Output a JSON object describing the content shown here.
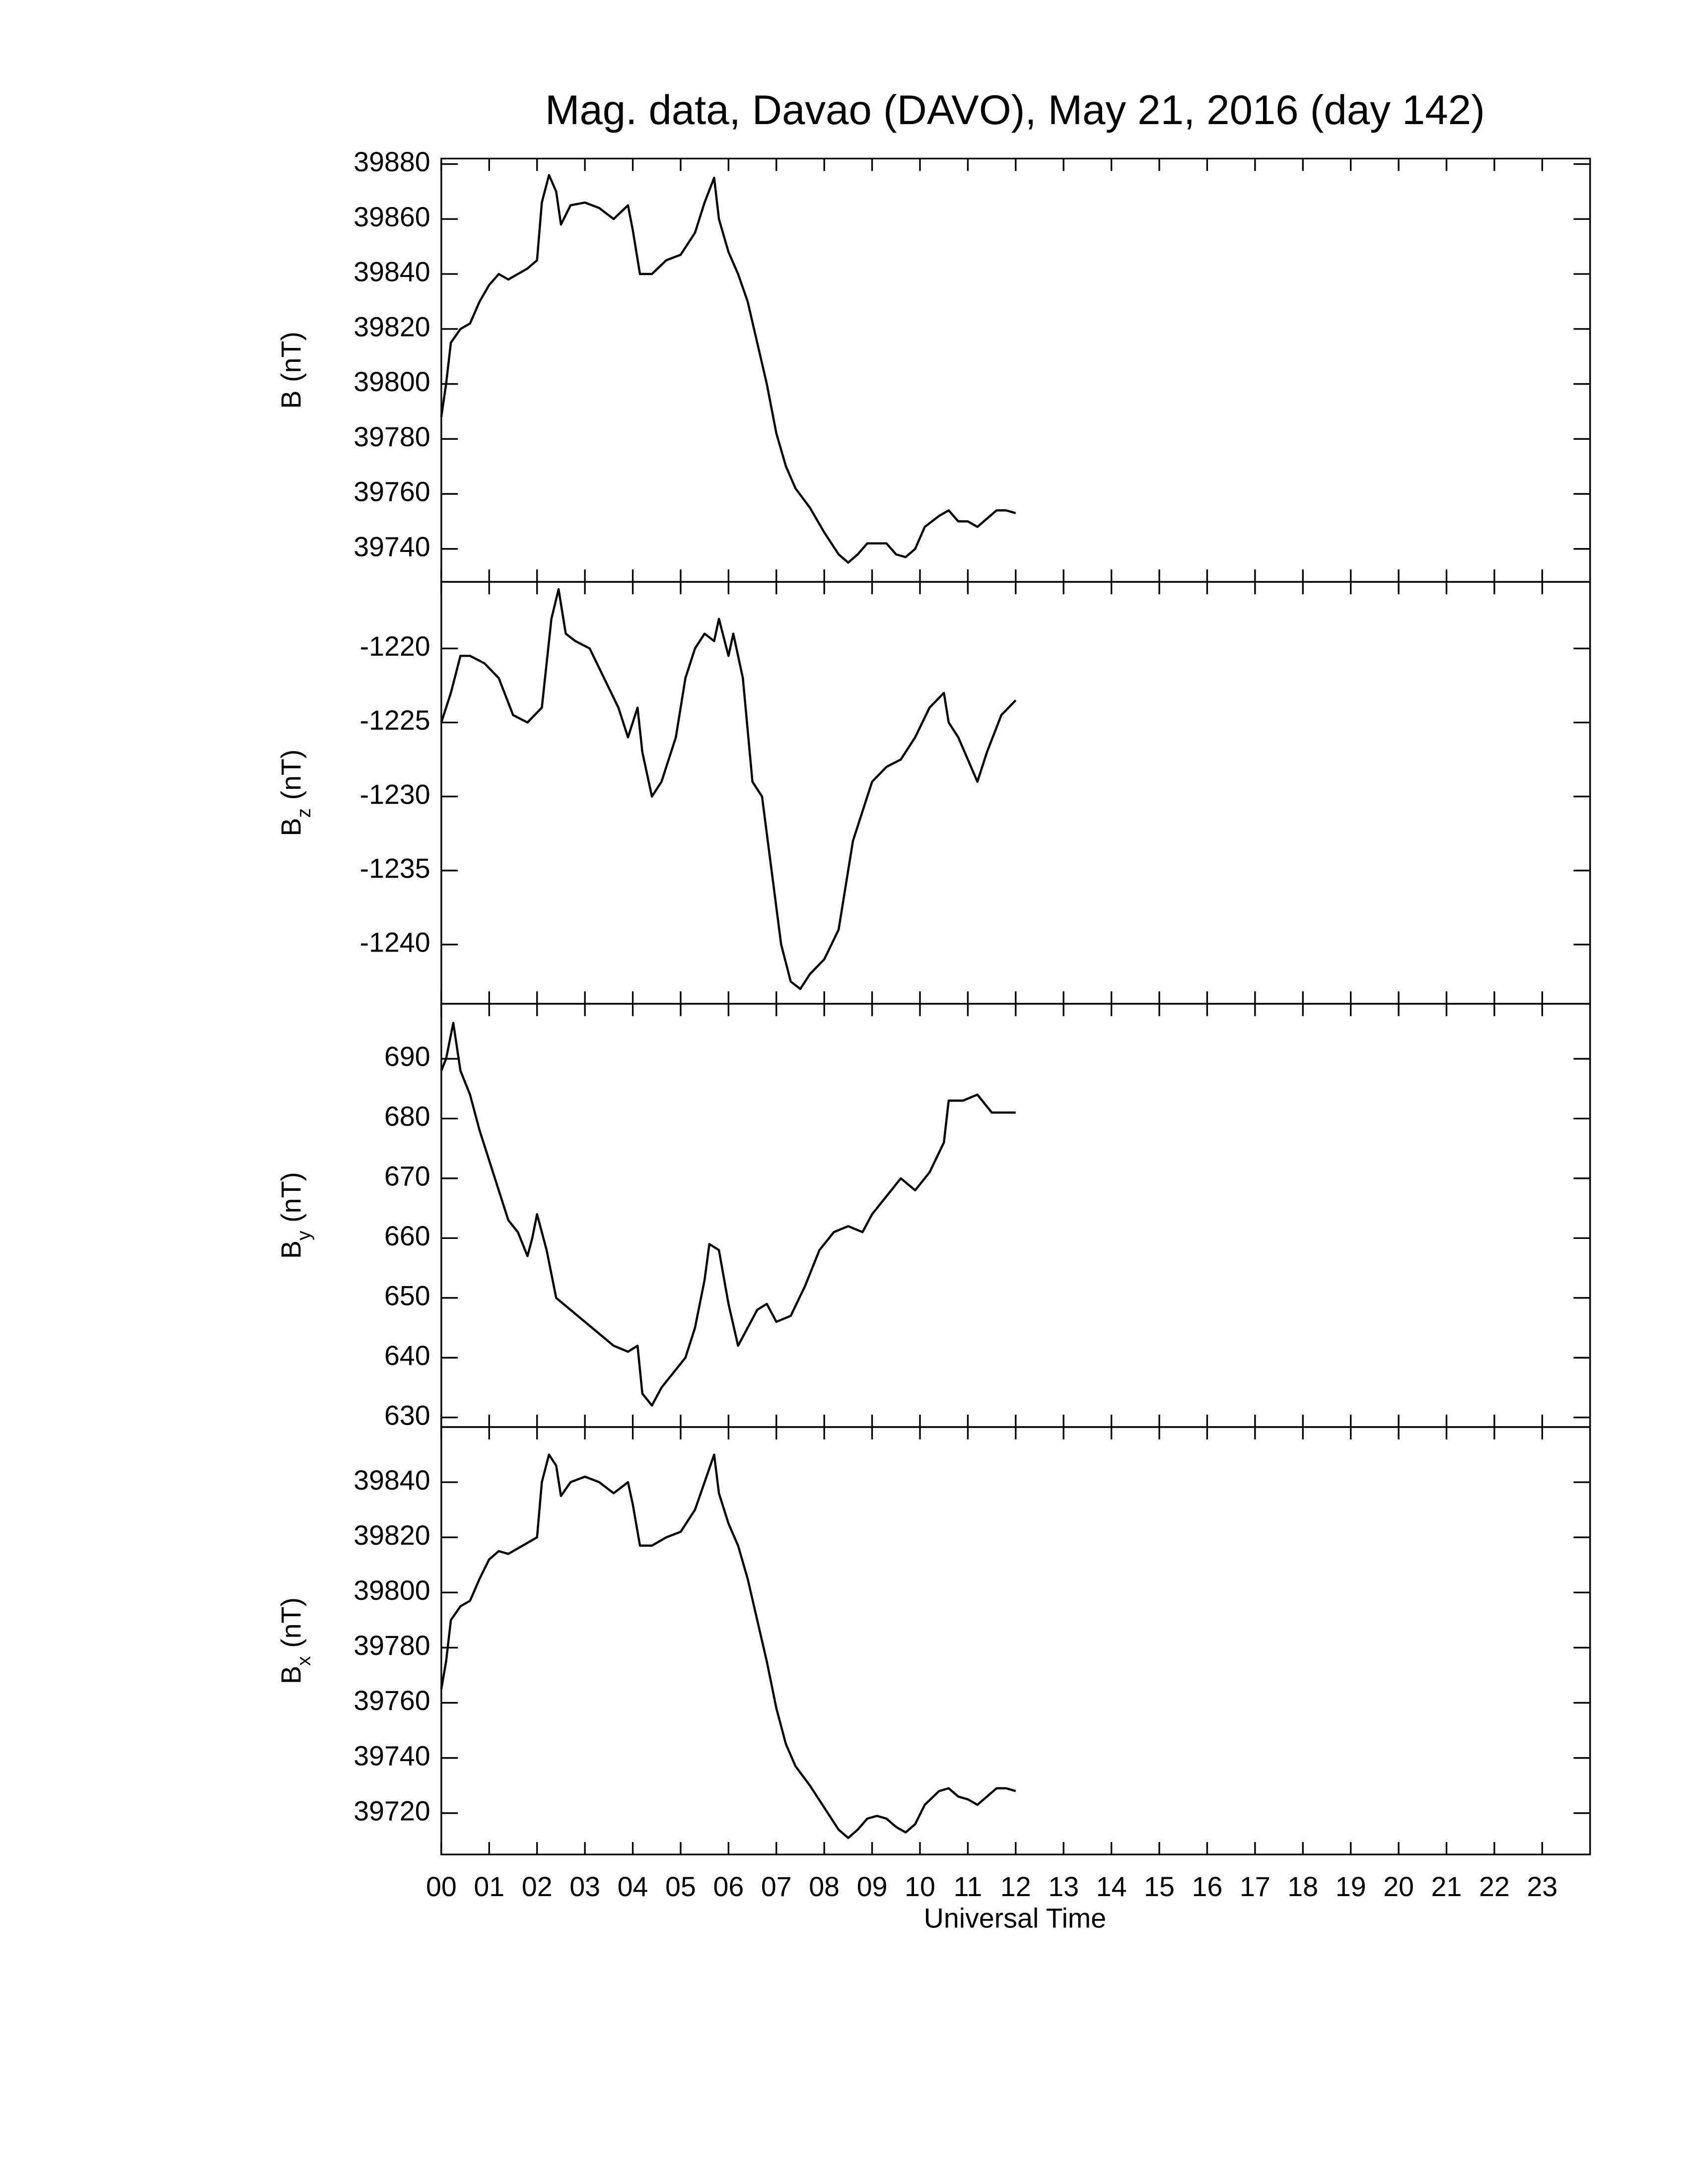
{
  "chart_data": [
    {
      "type": "line",
      "title": "Mag. data, Davao (DAVO), May 21, 2016 (day 142)",
      "ylabel": "B",
      "ylabel_unit": "(nT)",
      "color": "#000000",
      "x": [
        0,
        0.1,
        0.2,
        0.4,
        0.6,
        0.8,
        1.0,
        1.2,
        1.4,
        1.6,
        1.8,
        2.0,
        2.1,
        2.25,
        2.4,
        2.5,
        2.7,
        3.0,
        3.3,
        3.6,
        3.9,
        4.0,
        4.15,
        4.4,
        4.7,
        5.0,
        5.3,
        5.5,
        5.7,
        5.8,
        6.0,
        6.2,
        6.4,
        6.6,
        6.8,
        7.0,
        7.2,
        7.4,
        7.7,
        8.0,
        8.3,
        8.5,
        8.7,
        8.9,
        9.1,
        9.3,
        9.5,
        9.7,
        9.9,
        10.1,
        10.4,
        10.6,
        10.8,
        11.0,
        11.2,
        11.4,
        11.6,
        11.8,
        12.0
      ],
      "values": [
        39788,
        39800,
        39815,
        39820,
        39822,
        39830,
        39836,
        39840,
        39838,
        39840,
        39842,
        39845,
        39866,
        39876,
        39870,
        39858,
        39865,
        39866,
        39864,
        39860,
        39865,
        39856,
        39840,
        39840,
        39845,
        39847,
        39855,
        39866,
        39875,
        39860,
        39848,
        39840,
        39830,
        39815,
        39800,
        39782,
        39770,
        39762,
        39755,
        39746,
        39738,
        39735,
        39738,
        39742,
        39742,
        39742,
        39738,
        39737,
        39740,
        39748,
        39752,
        39754,
        39750,
        39750,
        39748,
        39751,
        39754,
        39754,
        39753
      ],
      "ylim": [
        39728,
        39882
      ],
      "yticks": [
        39740,
        39760,
        39780,
        39800,
        39820,
        39840,
        39860,
        39880
      ]
    },
    {
      "type": "line",
      "ylabel": "B",
      "ylabel_sub": "z",
      "ylabel_unit": "(nT)",
      "color": "#000000",
      "x": [
        0,
        0.2,
        0.4,
        0.6,
        0.9,
        1.2,
        1.5,
        1.8,
        2.1,
        2.3,
        2.45,
        2.6,
        2.8,
        3.1,
        3.4,
        3.7,
        3.9,
        4.1,
        4.2,
        4.4,
        4.6,
        4.9,
        5.1,
        5.3,
        5.5,
        5.7,
        5.8,
        6.0,
        6.1,
        6.3,
        6.5,
        6.7,
        6.9,
        7.1,
        7.3,
        7.5,
        7.7,
        8.0,
        8.3,
        8.6,
        8.8,
        9.0,
        9.3,
        9.6,
        9.9,
        10.2,
        10.5,
        10.6,
        10.8,
        11.0,
        11.2,
        11.4,
        11.7,
        12.0
      ],
      "values": [
        -1225,
        -1223,
        -1220.5,
        -1220.5,
        -1221,
        -1222,
        -1224.5,
        -1225,
        -1224,
        -1218,
        -1216,
        -1219,
        -1219.5,
        -1220,
        -1222,
        -1224,
        -1226,
        -1224,
        -1227,
        -1230,
        -1229,
        -1226,
        -1222,
        -1220,
        -1219,
        -1219.5,
        -1218,
        -1220.5,
        -1219,
        -1222,
        -1229,
        -1230,
        -1235,
        -1240,
        -1242.5,
        -1243,
        -1242,
        -1241,
        -1239,
        -1233,
        -1231,
        -1229,
        -1228,
        -1227.5,
        -1226,
        -1224,
        -1223,
        -1225,
        -1226,
        -1227.5,
        -1229,
        -1227,
        -1224.5,
        -1223.5
      ],
      "ylim": [
        -1244,
        -1215.5
      ],
      "yticks": [
        -1240,
        -1235,
        -1230,
        -1225,
        -1220
      ]
    },
    {
      "type": "line",
      "ylabel": "B",
      "ylabel_sub": "y",
      "ylabel_unit": "(nT)",
      "color": "#000000",
      "x": [
        0,
        0.1,
        0.25,
        0.4,
        0.6,
        0.8,
        1.0,
        1.2,
        1.4,
        1.6,
        1.8,
        1.9,
        2.0,
        2.2,
        2.4,
        2.7,
        3.0,
        3.3,
        3.6,
        3.9,
        4.1,
        4.2,
        4.4,
        4.6,
        4.9,
        5.1,
        5.3,
        5.5,
        5.6,
        5.8,
        6.0,
        6.2,
        6.4,
        6.6,
        6.8,
        7.0,
        7.3,
        7.6,
        7.9,
        8.2,
        8.5,
        8.8,
        9.0,
        9.3,
        9.6,
        9.9,
        10.2,
        10.5,
        10.6,
        10.9,
        11.2,
        11.5,
        11.8,
        12.0
      ],
      "values": [
        688,
        690,
        696,
        688,
        684,
        678,
        673,
        668,
        663,
        661,
        657,
        660,
        664,
        658,
        650,
        648,
        646,
        644,
        642,
        641,
        642,
        634,
        632,
        635,
        638,
        640,
        645,
        653,
        659,
        658,
        649,
        642,
        645,
        648,
        649,
        646,
        647,
        652,
        658,
        661,
        662,
        661,
        664,
        667,
        670,
        668,
        671,
        676,
        683,
        683,
        684,
        681,
        681,
        681
      ],
      "ylim": [
        628.4,
        699.2
      ],
      "yticks": [
        630,
        640,
        650,
        660,
        670,
        680,
        690
      ]
    },
    {
      "type": "line",
      "ylabel": "B",
      "ylabel_sub": "x",
      "ylabel_unit": "(nT)",
      "xlabel": "Universal Time",
      "color": "#000000",
      "x": [
        0,
        0.1,
        0.2,
        0.4,
        0.6,
        0.8,
        1.0,
        1.2,
        1.4,
        1.6,
        1.8,
        2.0,
        2.1,
        2.25,
        2.4,
        2.5,
        2.7,
        3.0,
        3.3,
        3.6,
        3.9,
        4.0,
        4.15,
        4.4,
        4.7,
        5.0,
        5.3,
        5.5,
        5.7,
        5.8,
        6.0,
        6.2,
        6.4,
        6.6,
        6.8,
        7.0,
        7.2,
        7.4,
        7.7,
        8.0,
        8.3,
        8.5,
        8.7,
        8.9,
        9.1,
        9.3,
        9.5,
        9.7,
        9.9,
        10.1,
        10.4,
        10.6,
        10.8,
        11.0,
        11.2,
        11.4,
        11.6,
        11.8,
        12.0
      ],
      "values": [
        39765,
        39775,
        39790,
        39795,
        39797,
        39805,
        39812,
        39815,
        39814,
        39816,
        39818,
        39820,
        39840,
        39850,
        39846,
        39835,
        39840,
        39842,
        39840,
        39836,
        39840,
        39832,
        39817,
        39817,
        39820,
        39822,
        39830,
        39840,
        39850,
        39836,
        39825,
        39817,
        39805,
        39790,
        39775,
        39758,
        39745,
        39737,
        39730,
        39722,
        39714,
        39711,
        39714,
        39718,
        39719,
        39718,
        39715,
        39713,
        39716,
        39723,
        39728,
        39729,
        39726,
        39725,
        39723,
        39726,
        39729,
        39729,
        39728
      ],
      "ylim": [
        39705,
        39860
      ],
      "yticks": [
        39720,
        39740,
        39760,
        39780,
        39800,
        39820,
        39840
      ],
      "xlim": [
        0,
        24
      ],
      "xticks": [
        {
          "value": 0,
          "label": "00"
        },
        {
          "value": 1,
          "label": "01"
        },
        {
          "value": 2,
          "label": "02"
        },
        {
          "value": 3,
          "label": "03"
        },
        {
          "value": 4,
          "label": "04"
        },
        {
          "value": 5,
          "label": "05"
        },
        {
          "value": 6,
          "label": "06"
        },
        {
          "value": 7,
          "label": "07"
        },
        {
          "value": 8,
          "label": "08"
        },
        {
          "value": 9,
          "label": "09"
        },
        10,
        11,
        12,
        13,
        14,
        15,
        16,
        17,
        18,
        19,
        20,
        21,
        22,
        23
      ]
    }
  ]
}
